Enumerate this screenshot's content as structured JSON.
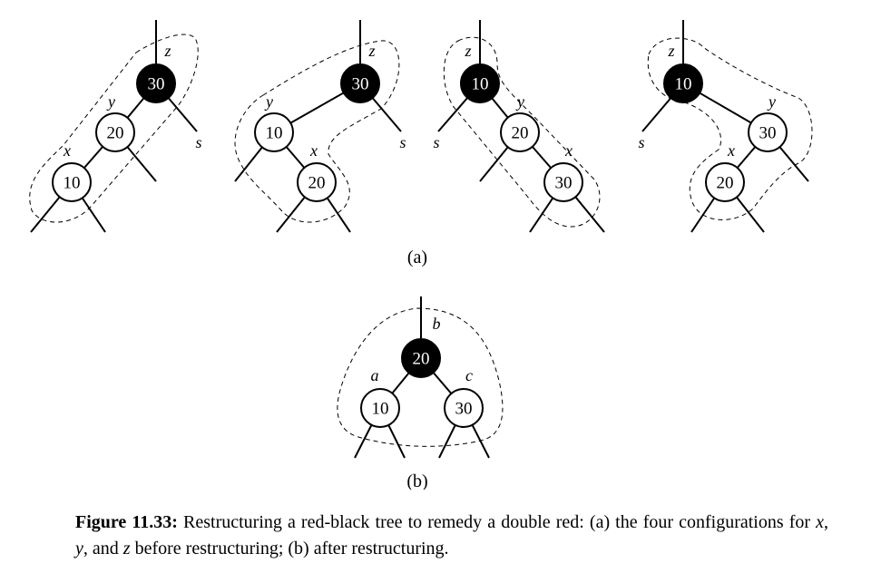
{
  "caption": {
    "label": "Figure 11.33:",
    "text_1": " Restructuring a red-black tree to remedy a double red: (a) the four configurations for ",
    "var_x": "x",
    "sep_1": ", ",
    "var_y": "y",
    "sep_2": ", and ",
    "var_z": "z",
    "text_2": " before restructuring; (b) after restructuring."
  },
  "subfigure_labels": {
    "a": "(a)",
    "b": "(b)"
  },
  "colors": {
    "black_node": "#000000",
    "red_node": "#ffffff",
    "stroke": "#000000"
  },
  "config_a1": {
    "nodes": [
      {
        "key": "30",
        "color": "black",
        "var": "z"
      },
      {
        "key": "20",
        "color": "red",
        "var": "y"
      },
      {
        "key": "10",
        "color": "red",
        "var": "x"
      }
    ],
    "sibling_label": "s"
  },
  "config_a2": {
    "nodes": [
      {
        "key": "30",
        "color": "black",
        "var": "z"
      },
      {
        "key": "10",
        "color": "red",
        "var": "y"
      },
      {
        "key": "20",
        "color": "red",
        "var": "x"
      }
    ],
    "sibling_label": "s"
  },
  "config_a3": {
    "nodes": [
      {
        "key": "10",
        "color": "black",
        "var": "z"
      },
      {
        "key": "20",
        "color": "red",
        "var": "y"
      },
      {
        "key": "30",
        "color": "red",
        "var": "x"
      }
    ],
    "sibling_label": "s"
  },
  "config_a4": {
    "nodes": [
      {
        "key": "10",
        "color": "black",
        "var": "z"
      },
      {
        "key": "30",
        "color": "red",
        "var": "y"
      },
      {
        "key": "20",
        "color": "red",
        "var": "x"
      }
    ],
    "sibling_label": "s"
  },
  "config_b": {
    "nodes": [
      {
        "key": "20",
        "color": "black",
        "var": "b"
      },
      {
        "key": "10",
        "color": "red",
        "var": "a"
      },
      {
        "key": "30",
        "color": "red",
        "var": "c"
      }
    ]
  }
}
